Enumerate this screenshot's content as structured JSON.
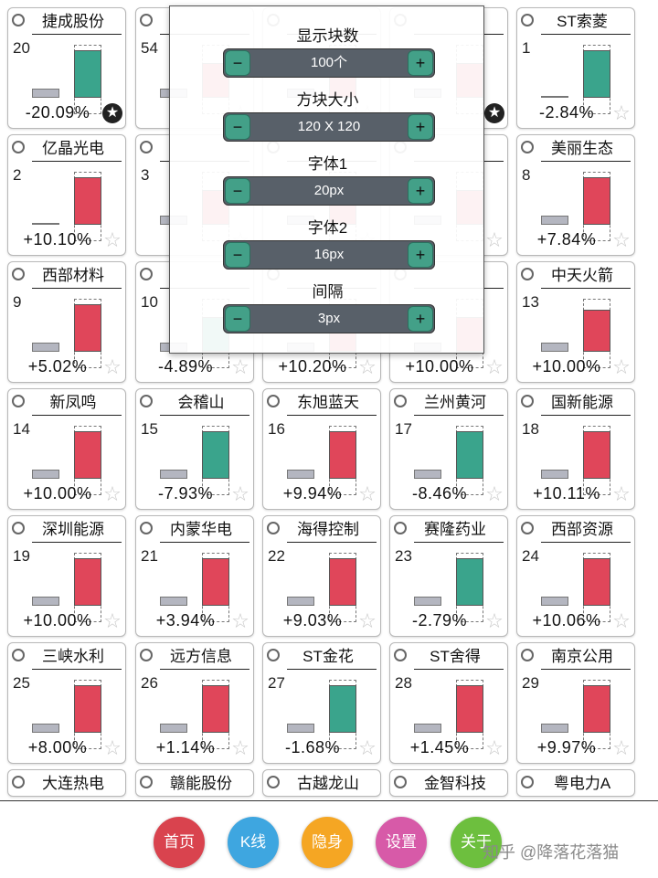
{
  "tiles": [
    {
      "name": "捷成股份",
      "rank": "20",
      "pct": "-20.09%",
      "dir": "down",
      "fill": 0.68,
      "star": true,
      "thin": false
    },
    {
      "name": "",
      "rank": "54",
      "pct": "",
      "dir": "up",
      "fill": 0.5,
      "star": false,
      "thin": false,
      "hidden": true
    },
    {
      "name": "",
      "rank": "",
      "pct": "",
      "dir": "up",
      "fill": 0.5,
      "star": false,
      "hidden": true
    },
    {
      "name": "",
      "rank": "",
      "pct": "",
      "dir": "up",
      "fill": 0.5,
      "star": true,
      "hidden": true
    },
    {
      "name": "ST索菱",
      "rank": "1",
      "pct": "-2.84%",
      "dir": "down",
      "fill": 0.68,
      "star": false,
      "thin": true
    },
    {
      "name": "亿晶光电",
      "rank": "2",
      "pct": "+10.10%",
      "dir": "up",
      "fill": 0.68,
      "star": false,
      "thin": true
    },
    {
      "name": "",
      "rank": "3",
      "pct": "",
      "dir": "up",
      "fill": 0.5,
      "star": false,
      "hidden": true
    },
    {
      "name": "",
      "rank": "",
      "pct": "",
      "dir": "up",
      "fill": 0.5,
      "star": false,
      "hidden": true
    },
    {
      "name": "",
      "rank": "",
      "pct": "",
      "dir": "up",
      "fill": 0.5,
      "star": false,
      "hidden": true
    },
    {
      "name": "美丽生态",
      "rank": "8",
      "pct": "+7.84%",
      "dir": "up",
      "fill": 0.68,
      "star": false,
      "thin": false
    },
    {
      "name": "西部材料",
      "rank": "9",
      "pct": "+5.02%",
      "dir": "up",
      "fill": 0.68,
      "star": false,
      "thin": false
    },
    {
      "name": "",
      "rank": "10",
      "pct": "-4.89%",
      "dir": "down",
      "fill": 0.5,
      "star": false,
      "hidden": true
    },
    {
      "name": "",
      "rank": "",
      "pct": "+10.20%",
      "dir": "up",
      "fill": 0.5,
      "star": false,
      "hidden": true
    },
    {
      "name": "",
      "rank": "",
      "pct": "+10.00%",
      "dir": "up",
      "fill": 0.5,
      "star": false,
      "hidden": true
    },
    {
      "name": "中天火箭",
      "rank": "13",
      "pct": "+10.00%",
      "dir": "up",
      "fill": 0.6,
      "star": false,
      "thin": false
    },
    {
      "name": "新凤鸣",
      "rank": "14",
      "pct": "+10.00%",
      "dir": "up",
      "fill": 0.68,
      "star": false,
      "thin": false
    },
    {
      "name": "会稽山",
      "rank": "15",
      "pct": "-7.93%",
      "dir": "down",
      "fill": 0.68,
      "star": false,
      "thin": false
    },
    {
      "name": "东旭蓝天",
      "rank": "16",
      "pct": "+9.94%",
      "dir": "up",
      "fill": 0.68,
      "star": false,
      "thin": false
    },
    {
      "name": "兰州黄河",
      "rank": "17",
      "pct": "-8.46%",
      "dir": "down",
      "fill": 0.68,
      "star": false,
      "thin": false
    },
    {
      "name": "国新能源",
      "rank": "18",
      "pct": "+10.11%",
      "dir": "up",
      "fill": 0.68,
      "star": false,
      "thin": false
    },
    {
      "name": "深圳能源",
      "rank": "19",
      "pct": "+10.00%",
      "dir": "up",
      "fill": 0.68,
      "star": false,
      "thin": false
    },
    {
      "name": "内蒙华电",
      "rank": "21",
      "pct": "+3.94%",
      "dir": "up",
      "fill": 0.68,
      "star": false,
      "thin": false
    },
    {
      "name": "海得控制",
      "rank": "22",
      "pct": "+9.03%",
      "dir": "up",
      "fill": 0.68,
      "star": false,
      "thin": false
    },
    {
      "name": "赛隆药业",
      "rank": "23",
      "pct": "-2.79%",
      "dir": "down",
      "fill": 0.68,
      "star": false,
      "thin": false
    },
    {
      "name": "西部资源",
      "rank": "24",
      "pct": "+10.06%",
      "dir": "up",
      "fill": 0.68,
      "star": false,
      "thin": false
    },
    {
      "name": "三峡水利",
      "rank": "25",
      "pct": "+8.00%",
      "dir": "up",
      "fill": 0.68,
      "star": false,
      "thin": false
    },
    {
      "name": "远方信息",
      "rank": "26",
      "pct": "+1.14%",
      "dir": "up",
      "fill": 0.68,
      "star": false,
      "thin": false
    },
    {
      "name": "ST金花",
      "rank": "27",
      "pct": "-1.68%",
      "dir": "down",
      "fill": 0.68,
      "star": false,
      "thin": false
    },
    {
      "name": "ST舍得",
      "rank": "28",
      "pct": "+1.45%",
      "dir": "up",
      "fill": 0.68,
      "star": false,
      "thin": false
    },
    {
      "name": "南京公用",
      "rank": "29",
      "pct": "+9.97%",
      "dir": "up",
      "fill": 0.68,
      "star": false,
      "thin": false
    }
  ],
  "partial_tiles": [
    "大连热电",
    "赣能股份",
    "古越龙山",
    "金智科技",
    "粤电力A"
  ],
  "settings": [
    {
      "label": "显示块数",
      "value": "100个"
    },
    {
      "label": "方块大小",
      "value": "120 X 120"
    },
    {
      "label": "字体1",
      "value": "20px"
    },
    {
      "label": "字体2",
      "value": "16px"
    },
    {
      "label": "间隔",
      "value": "3px"
    }
  ],
  "stepper_minus": "−",
  "stepper_plus": "+",
  "nav": [
    {
      "label": "首页",
      "color": "#d9434e"
    },
    {
      "label": "K线",
      "color": "#3ea6e0"
    },
    {
      "label": "隐身",
      "color": "#f5a623"
    },
    {
      "label": "设置",
      "color": "#d75aa8"
    },
    {
      "label": "关于",
      "color": "#6dbf3e"
    }
  ],
  "watermark": "知乎 @降落花落猫",
  "colors": {
    "up": "#e0465a",
    "down": "#3aa48c",
    "panel": "#586069",
    "stepper_btn": "#43a088"
  }
}
